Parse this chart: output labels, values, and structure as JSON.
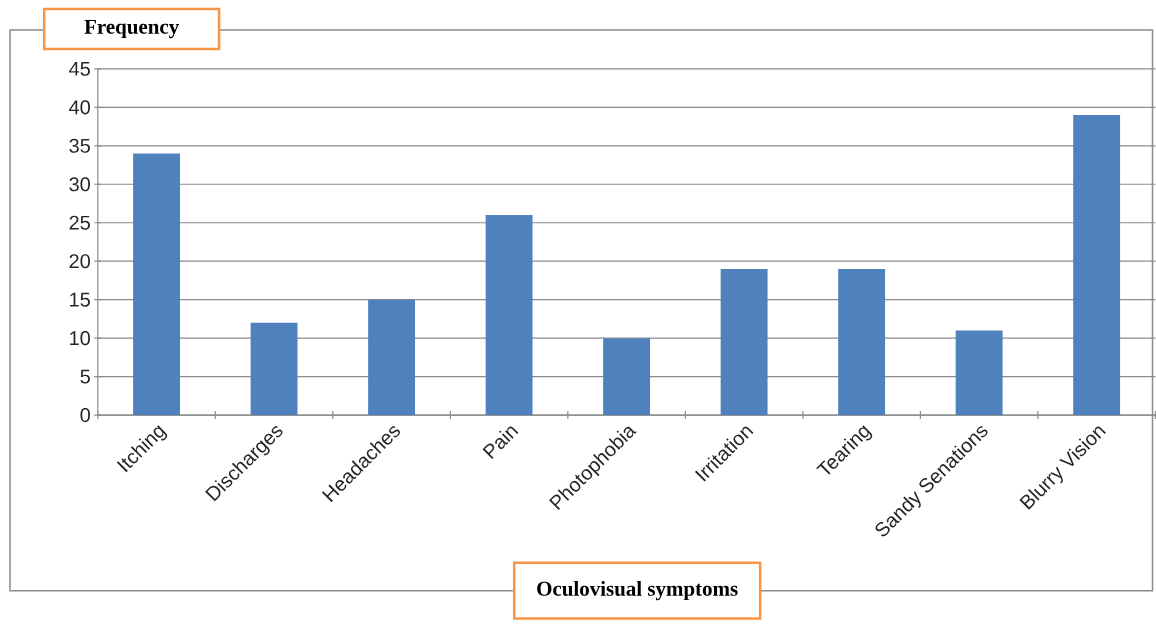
{
  "chart_data": {
    "type": "bar",
    "xlabel": "Oculovisual symptoms",
    "ylabel": "Frequency",
    "categories": [
      "Itching",
      "Discharges",
      "Headaches",
      "Pain",
      "Photophobia",
      "Irritation",
      "Tearing",
      "Sandy Senations",
      "Blurry Vision"
    ],
    "values": [
      34,
      12,
      15,
      26,
      10,
      19,
      19,
      11,
      39
    ],
    "color": "#4f81bd",
    "ylim": [
      0,
      45
    ],
    "yticks": [
      0,
      5,
      10,
      15,
      20,
      25,
      30,
      35,
      40,
      45
    ],
    "grid": "y"
  }
}
